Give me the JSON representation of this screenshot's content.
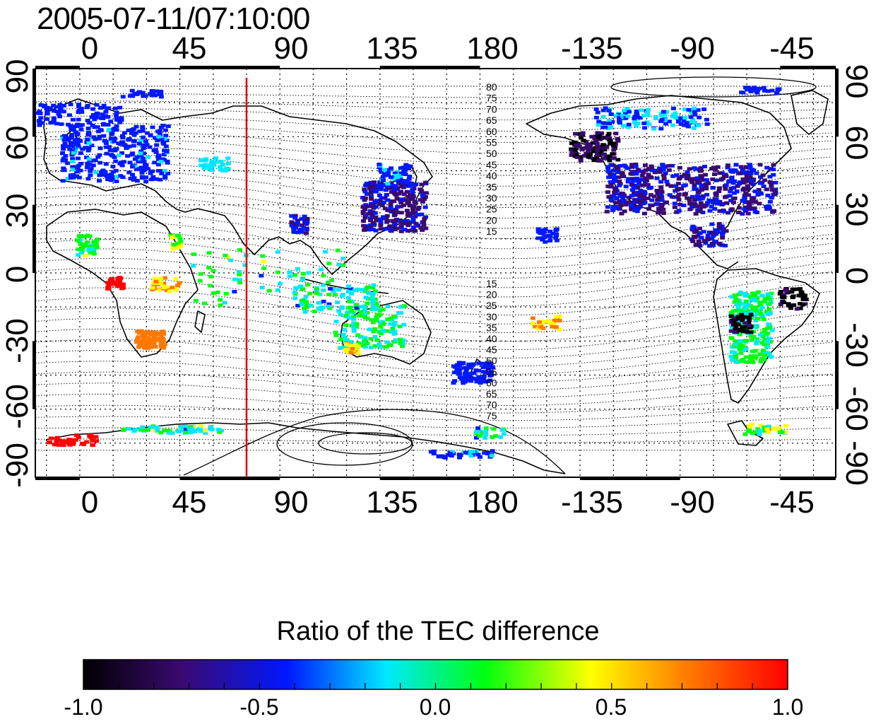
{
  "title": "2005-07-11/07:10:00",
  "map": {
    "lon_ticks_top": [
      "0",
      "45",
      "90",
      "135",
      "180",
      "-135",
      "-90",
      "-45"
    ],
    "lon_ticks_bottom": [
      "0",
      "45",
      "90",
      "135",
      "180",
      "-135",
      "-90",
      "-45"
    ],
    "lat_ticks_left": [
      "90",
      "60",
      "30",
      "0",
      "-30",
      "-60",
      "-90"
    ],
    "lat_ticks_right": [
      "90",
      "60",
      "30",
      "0",
      "-30",
      "-60",
      "-90"
    ],
    "marker_longitude": 75,
    "contour_labels_north": [
      "80",
      "75",
      "70",
      "65",
      "60",
      "55",
      "50",
      "45",
      "40",
      "35",
      "30",
      "25",
      "20",
      "15"
    ],
    "contour_labels_south": [
      "15",
      "20",
      "25",
      "30",
      "35",
      "40",
      "45",
      "50",
      "55",
      "60",
      "65",
      "70",
      "75"
    ],
    "marker_color": "#dd0000"
  },
  "colorbar": {
    "title": "Ratio of the TEC difference",
    "ticks": [
      "-1.0",
      "-0.5",
      "0.0",
      "0.5",
      "1.0"
    ],
    "colors": [
      "#000000",
      "#3a0a70",
      "#0018ff",
      "#00e8ff",
      "#00ff10",
      "#ffff00",
      "#ff7800",
      "#ff0000"
    ]
  }
}
